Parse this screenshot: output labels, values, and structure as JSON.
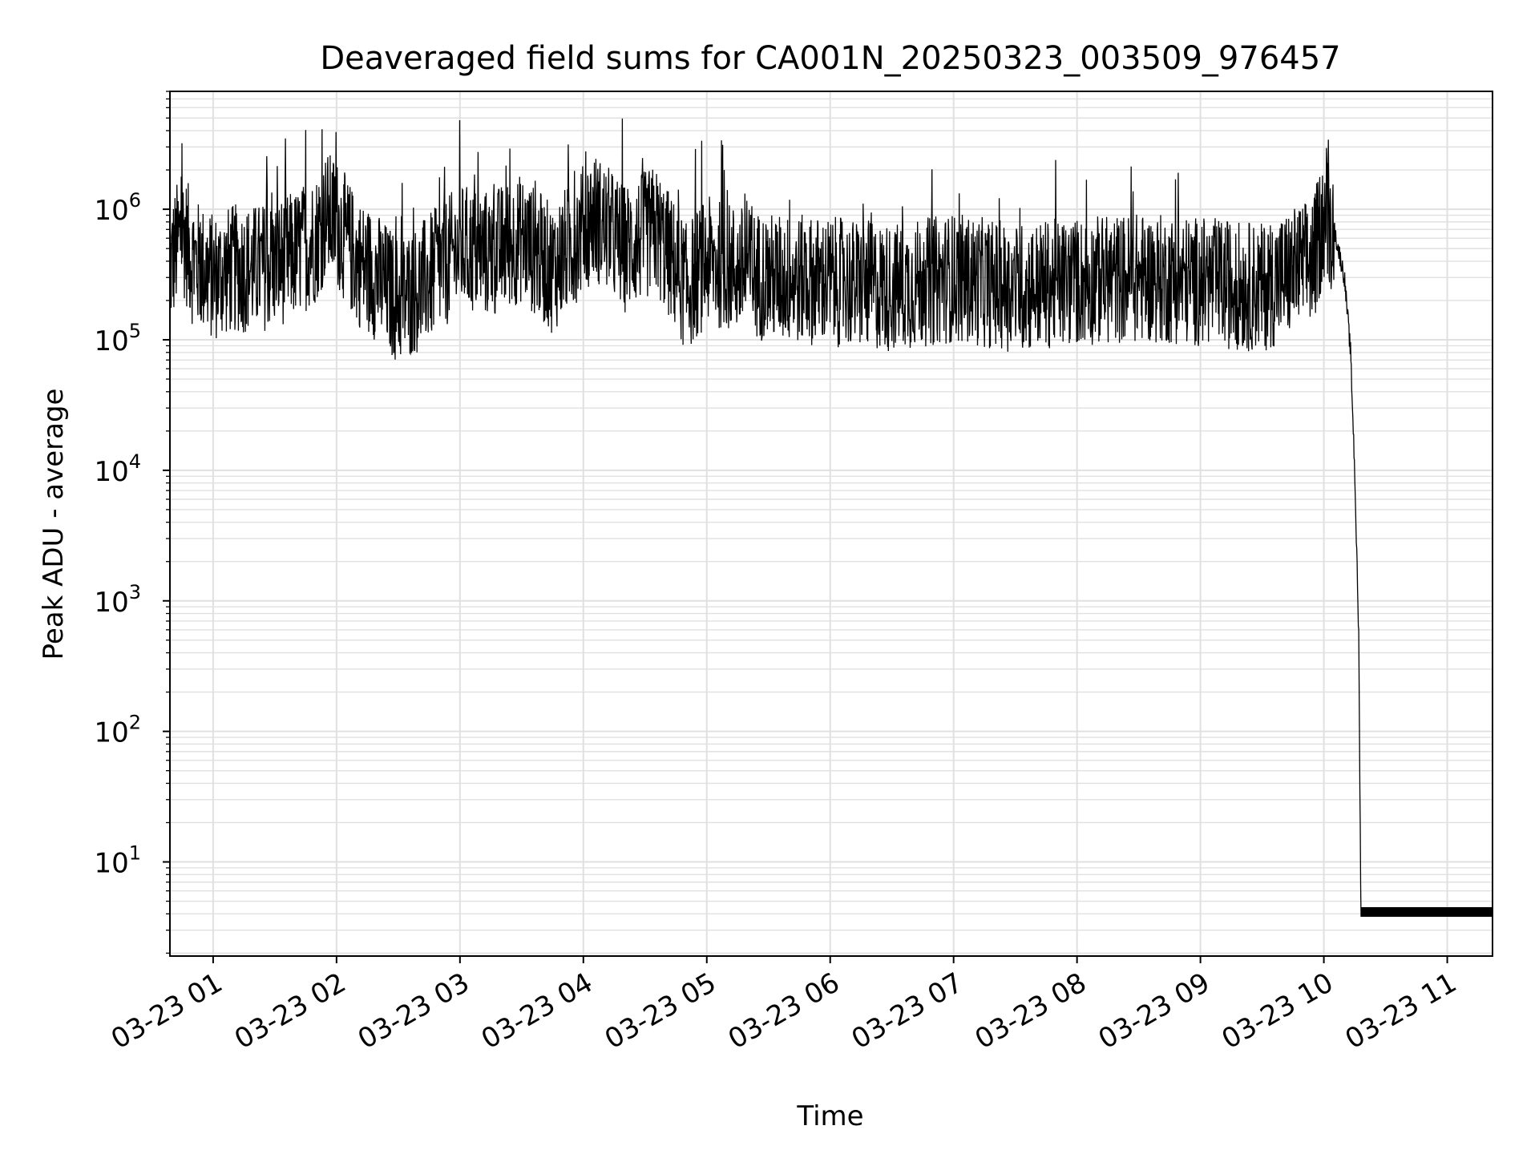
{
  "chart_data": {
    "type": "line",
    "title": "Deaveraged field sums for CA001N_20250323_003509_976457",
    "xlabel": "Time",
    "ylabel": "Peak ADU - average",
    "yscale": "log",
    "grid": true,
    "grid_minor": true,
    "line_color": "#000000",
    "grid_color": "#e0e0e0",
    "xlim": [
      "2025-03-23 00:39",
      "2025-03-23 11:22"
    ],
    "ylim": [
      1.9,
      8000000
    ],
    "x_ticks": [
      "2025-03-23 01:00",
      "2025-03-23 02:00",
      "2025-03-23 03:00",
      "2025-03-23 04:00",
      "2025-03-23 05:00",
      "2025-03-23 06:00",
      "2025-03-23 07:00",
      "2025-03-23 08:00",
      "2025-03-23 09:00",
      "2025-03-23 10:00",
      "2025-03-23 11:00"
    ],
    "x_tick_labels": [
      "03-23 01",
      "03-23 02",
      "03-23 03",
      "03-23 04",
      "03-23 05",
      "03-23 06",
      "03-23 07",
      "03-23 08",
      "03-23 09",
      "03-23 10",
      "03-23 11"
    ],
    "y_ticks": [
      10,
      100,
      1000,
      10000,
      100000,
      1000000
    ],
    "y_tick_labels": [
      {
        "base": "10",
        "exp": "1"
      },
      {
        "base": "10",
        "exp": "2"
      },
      {
        "base": "10",
        "exp": "3"
      },
      {
        "base": "10",
        "exp": "4"
      },
      {
        "base": "10",
        "exp": "5"
      },
      {
        "base": "10",
        "exp": "6"
      }
    ],
    "series": [
      {
        "x": [
          "2025-03-23 00:39",
          "2025-03-23 00:45",
          "2025-03-23 00:50",
          "2025-03-23 01:00",
          "2025-03-23 01:10",
          "2025-03-23 01:20",
          "2025-03-23 01:30",
          "2025-03-23 01:40",
          "2025-03-23 01:50",
          "2025-03-23 01:55",
          "2025-03-23 02:00",
          "2025-03-23 02:10",
          "2025-03-23 02:20",
          "2025-03-23 02:30",
          "2025-03-23 02:40",
          "2025-03-23 02:50",
          "2025-03-23 03:00",
          "2025-03-23 03:15",
          "2025-03-23 03:30",
          "2025-03-23 03:45",
          "2025-03-23 04:05",
          "2025-03-23 04:20",
          "2025-03-23 04:35",
          "2025-03-23 04:50",
          "2025-03-23 05:00",
          "2025-03-23 05:30",
          "2025-03-23 06:00",
          "2025-03-23 06:30",
          "2025-03-23 07:00",
          "2025-03-23 07:30",
          "2025-03-23 08:00",
          "2025-03-23 08:30",
          "2025-03-23 09:00",
          "2025-03-23 09:30",
          "2025-03-23 09:55",
          "2025-03-23 10:00",
          "2025-03-23 10:05",
          "2025-03-23 10:10",
          "2025-03-23 10:13",
          "2025-03-23 10:15",
          "2025-03-23 10:17",
          "2025-03-23 10:18",
          "2025-03-23 10:20",
          "2025-03-23 10:40",
          "2025-03-23 11:00",
          "2025-03-23 11:22"
        ],
        "values": [
          350000,
          700000,
          400000,
          300000,
          350000,
          350000,
          380000,
          450000,
          600000,
          900000,
          800000,
          400000,
          300000,
          200000,
          250000,
          350000,
          500000,
          450000,
          600000,
          350000,
          900000,
          500000,
          700000,
          250000,
          400000,
          300000,
          280000,
          250000,
          300000,
          250000,
          280000,
          300000,
          280000,
          250000,
          400000,
          900000,
          700000,
          300000,
          80000,
          10000,
          500,
          4,
          4,
          4,
          4,
          4
        ]
      }
    ]
  }
}
